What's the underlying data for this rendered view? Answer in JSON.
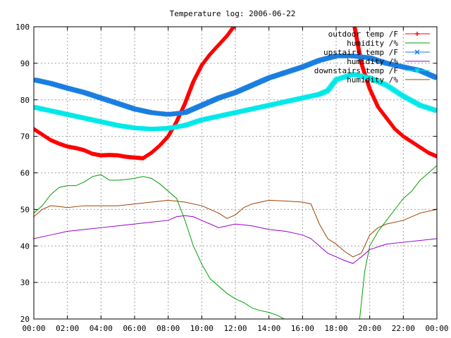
{
  "chart_data": {
    "type": "line",
    "title": "Temperature log: 2006-06-22",
    "xlabel": "",
    "ylabel": "",
    "x_unit": "hour",
    "xlim": [
      0,
      24
    ],
    "ylim": [
      20,
      100
    ],
    "grid": true,
    "legend_position": "top-right",
    "x_ticks": [
      {
        "value": 0,
        "label": "00:00"
      },
      {
        "value": 2,
        "label": "02:00"
      },
      {
        "value": 4,
        "label": "04:00"
      },
      {
        "value": 6,
        "label": "06:00"
      },
      {
        "value": 8,
        "label": "08:00"
      },
      {
        "value": 10,
        "label": "10:00"
      },
      {
        "value": 12,
        "label": "12:00"
      },
      {
        "value": 14,
        "label": "14:00"
      },
      {
        "value": 16,
        "label": "16:00"
      },
      {
        "value": 18,
        "label": "18:00"
      },
      {
        "value": 20,
        "label": "20:00"
      },
      {
        "value": 22,
        "label": "22:00"
      },
      {
        "value": 24,
        "label": "00:00"
      }
    ],
    "y_ticks": [
      20,
      30,
      40,
      50,
      60,
      70,
      80,
      90,
      100
    ],
    "series": [
      {
        "name": "outdoor temp /F",
        "color": "#ff0000",
        "marker": "plus",
        "x": [
          0,
          0.5,
          1,
          1.5,
          2,
          2.5,
          3,
          3.5,
          4,
          4.5,
          5,
          5.5,
          6,
          6.5,
          7,
          7.5,
          8,
          8.5,
          9,
          9.5,
          10,
          10.5,
          11,
          11.5,
          11.9
        ],
        "y": [
          72,
          70.5,
          69,
          68,
          67.2,
          66.8,
          66.2,
          65.2,
          64.8,
          64.9,
          64.8,
          64.4,
          64.2,
          64.0,
          65.5,
          67.5,
          70,
          74,
          79,
          85,
          89.5,
          92.5,
          95,
          97.5,
          100
        ]
      },
      {
        "name": "outdoor temp /F",
        "color": "#ff0000",
        "marker": "plus",
        "x": [
          19.1,
          19.5,
          20,
          20.5,
          21,
          21.5,
          22,
          22.5,
          23,
          23.5,
          24
        ],
        "y": [
          100,
          90,
          83,
          78,
          75,
          72,
          70,
          68.5,
          67,
          65.5,
          64.5
        ]
      },
      {
        "name": "humidity /%",
        "color": "#00a000",
        "x": [
          0,
          0.5,
          1,
          1.5,
          2,
          2.5,
          3,
          3.5,
          4,
          4.5,
          5,
          5.5,
          6,
          6.5,
          7,
          7.5,
          8,
          8.5,
          9,
          9.5,
          10,
          10.5,
          11,
          11.5,
          12,
          12.5,
          13,
          13.5,
          14,
          14.5,
          14.9
        ],
        "y": [
          49,
          51,
          54,
          56,
          56.5,
          56.5,
          57.5,
          59,
          59.5,
          58,
          58,
          58.2,
          58.5,
          59,
          58.5,
          57,
          55,
          53,
          47,
          40,
          35,
          31,
          29,
          27,
          25.5,
          24.5,
          23,
          22.3,
          21.8,
          21,
          20
        ]
      },
      {
        "name": "humidity /%",
        "color": "#00a000",
        "x": [
          19.4,
          19.7,
          20,
          20.5,
          21,
          21.5,
          22,
          22.5,
          23,
          23.5,
          24
        ],
        "y": [
          20,
          33,
          40,
          44,
          47,
          50,
          53,
          55,
          58,
          60,
          62
        ]
      },
      {
        "name": "upstairs temp /F",
        "color": "#1a7ee0",
        "marker": "x",
        "x": [
          0,
          1,
          2,
          3,
          4,
          5,
          6,
          7,
          8,
          9,
          10,
          11,
          12,
          13,
          14,
          15,
          16,
          17,
          18,
          19,
          20,
          21,
          22,
          23,
          24
        ],
        "y": [
          85.5,
          84.5,
          83.2,
          82,
          80.5,
          79,
          77.5,
          76.5,
          76,
          76.5,
          78.5,
          80.5,
          82,
          84,
          86,
          87.5,
          89,
          90.8,
          92,
          92,
          91.5,
          90,
          89,
          88,
          86
        ]
      },
      {
        "name": "humidity /%",
        "color": "#9900cc",
        "x": [
          0,
          1,
          2,
          3,
          4,
          5,
          6,
          7,
          8,
          8.5,
          9,
          9.5,
          10,
          10.5,
          11,
          12,
          13,
          14,
          15,
          16,
          16.5,
          17,
          17.5,
          18,
          18.5,
          19,
          19.5,
          20,
          21,
          22,
          23,
          24
        ],
        "y": [
          42,
          43,
          44,
          44.5,
          45,
          45.5,
          46,
          46.5,
          47,
          48,
          48.3,
          48,
          47,
          46,
          45,
          46,
          45.5,
          44.5,
          44,
          43,
          42,
          40,
          38,
          37,
          36,
          35.2,
          37,
          39,
          40.5,
          41,
          41.5,
          42
        ]
      },
      {
        "name": "downstairs temp /F",
        "color": "#00e8e8",
        "marker": "star",
        "x": [
          0,
          1,
          2,
          3,
          4,
          5,
          6,
          7,
          8,
          9,
          10,
          11,
          12,
          13,
          14,
          15,
          16,
          17,
          17.5,
          18,
          19,
          20,
          21,
          22,
          23,
          24
        ],
        "y": [
          78,
          77,
          76,
          75,
          74,
          73,
          72.3,
          72,
          72.2,
          73,
          74.5,
          75.5,
          76.5,
          77.5,
          78.5,
          79.5,
          80.5,
          81.5,
          82.5,
          85.5,
          87,
          86,
          84,
          81,
          78.5,
          77
        ]
      },
      {
        "name": "humidity /%",
        "color": "#a04000",
        "x": [
          0,
          0.5,
          1,
          1.5,
          2,
          3,
          4,
          5,
          6,
          7,
          8,
          9,
          10,
          11,
          11.5,
          12,
          12.5,
          13,
          13.5,
          14,
          15,
          16,
          16.5,
          17,
          17.5,
          18,
          18.5,
          19,
          19.5,
          20,
          20.5,
          21,
          22,
          23,
          24
        ],
        "y": [
          48,
          50,
          51,
          50.8,
          50.5,
          51,
          51,
          51,
          51.5,
          52,
          52.5,
          52,
          51,
          49,
          47.5,
          48.5,
          50.5,
          51.5,
          52,
          52.5,
          52.3,
          52,
          51.5,
          46,
          42,
          40.5,
          38.5,
          37,
          38,
          43,
          45,
          46,
          47,
          49,
          50
        ]
      }
    ],
    "legend": [
      {
        "label": "outdoor temp /F",
        "color": "#ff0000",
        "marker": "plus"
      },
      {
        "label": "humidity /%",
        "color": "#00a000",
        "marker": "none"
      },
      {
        "label": "upstairs temp /F",
        "color": "#1a7ee0",
        "marker": "x"
      },
      {
        "label": "humidity /%",
        "color": "#9900cc",
        "marker": "none"
      },
      {
        "label": "downstairs temp /F",
        "color": "#00e8e8",
        "marker": "star"
      },
      {
        "label": "humidity /%",
        "color": "#a04000",
        "marker": "none"
      }
    ]
  }
}
